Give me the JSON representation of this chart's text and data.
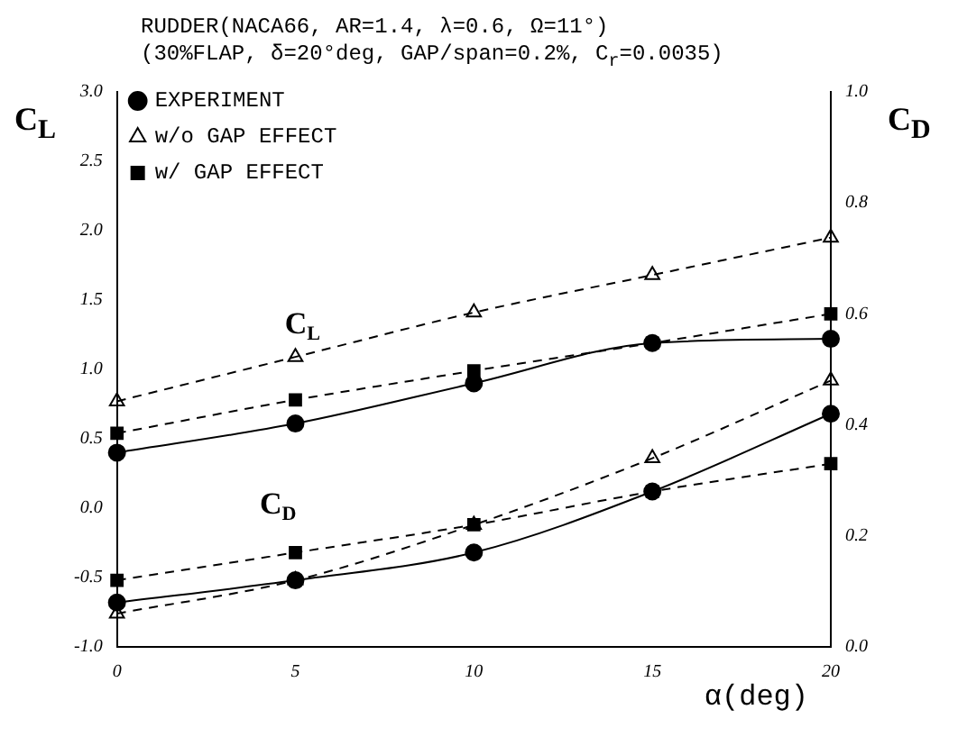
{
  "chart_data": {
    "type": "line",
    "title": "RUDDER(NACA66, AR=1.4, λ=0.6, Ω=11°)",
    "subtitle": "(30%FLAP, δ=20°deg, GAP/span=0.2%, C$_{r}$=0.0035)",
    "xlabel": "α(deg)",
    "ylabel": "C$_{L}$",
    "y2label": "C$_{D}$",
    "x": [
      0,
      5,
      10,
      15,
      20
    ],
    "xlim": [
      0,
      20
    ],
    "xticks": [
      0,
      5,
      10,
      15,
      20
    ],
    "ylim": [
      -1.0,
      3.0
    ],
    "yticks": [
      {
        "value": -1.0,
        "label": "-1.0"
      },
      {
        "value": -0.5,
        "label": "-0.5"
      },
      {
        "value": 0,
        "label": "0.0"
      },
      {
        "value": 0.5,
        "label": "0.5"
      },
      {
        "value": 1.0,
        "label": "1.0"
      },
      {
        "value": 1.5,
        "label": "1.5"
      },
      {
        "value": 2.0,
        "label": "2.0"
      },
      {
        "value": 2.5,
        "label": "2.5"
      },
      {
        "value": 3.0,
        "label": "3.0"
      }
    ],
    "y2lim": [
      0,
      1.0
    ],
    "y2ticks": [
      {
        "value": 0,
        "label": "0.0"
      },
      {
        "value": 0.2,
        "label": "0.2"
      },
      {
        "value": 0.4,
        "label": "0.4"
      },
      {
        "value": 0.6,
        "label": "0.6"
      },
      {
        "value": 0.8,
        "label": "0.8"
      },
      {
        "value": 1.0,
        "label": "1.0"
      }
    ],
    "grid": false,
    "legend": "top left",
    "series": [
      {
        "name": "EXPERIMENT",
        "color": "#000000",
        "marker": "circle",
        "line_style": "solid",
        "values": [
          0.4,
          0.61,
          0.9,
          1.19,
          1.22
        ]
      },
      {
        "name": "w/o GAP EFFECT",
        "color": "#000000",
        "marker": "triangle",
        "line_style": "dashed",
        "values": [
          0.77,
          1.09,
          1.41,
          1.68,
          1.95
        ]
      },
      {
        "name": "w/ GAP EFFECT",
        "color": "#000000",
        "marker": "square",
        "line_style": "dashed",
        "values": [
          0.54,
          0.78,
          0.99,
          1.19,
          1.4
        ]
      },
      {
        "color": "#000000",
        "marker": "circle",
        "line_style": "solid",
        "axis": "y2",
        "values": [
          0.08,
          0.12,
          0.17,
          0.28,
          0.42
        ]
      },
      {
        "color": "#000000",
        "marker": "triangle",
        "line_style": "dashed",
        "axis": "y2",
        "values": [
          0.06,
          0.12,
          0.22,
          0.34,
          0.48
        ]
      },
      {
        "color": "#000000",
        "marker": "square",
        "line_style": "dashed",
        "axis": "y2",
        "values": [
          0.12,
          0.17,
          0.22,
          0.28,
          0.33
        ]
      }
    ],
    "annotations": [
      "C$_{L}$",
      "C$_{D}$"
    ]
  }
}
